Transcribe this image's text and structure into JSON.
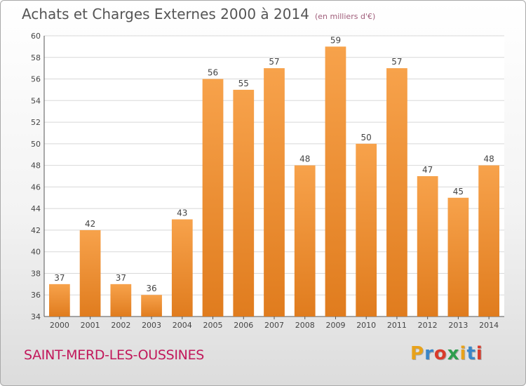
{
  "header": {
    "title": "Achats et Charges Externes 2000 à 2014",
    "subtitle": "(en milliers d'€)"
  },
  "footer": {
    "commune": "SAINT-MERD-LES-OUSSINES",
    "logo": "Proxiti"
  },
  "colors": {
    "bar_light": "#f7a24b",
    "bar_dark": "#e07c1e",
    "commune_text": "#c2185b"
  },
  "chart_data": {
    "type": "bar",
    "title": "Achats et Charges Externes 2000 à 2014",
    "subtitle": "(en milliers d'€)",
    "xlabel": "",
    "ylabel": "",
    "categories": [
      "2000",
      "2001",
      "2002",
      "2003",
      "2004",
      "2005",
      "2006",
      "2007",
      "2008",
      "2009",
      "2010",
      "2011",
      "2012",
      "2013",
      "2014"
    ],
    "values": [
      37,
      42,
      37,
      36,
      43,
      56,
      55,
      57,
      48,
      59,
      50,
      57,
      47,
      45,
      48
    ],
    "ylim": [
      34,
      60
    ],
    "yticks": [
      34,
      36,
      38,
      40,
      42,
      44,
      46,
      48,
      50,
      52,
      54,
      56,
      58,
      60
    ],
    "grid": true,
    "legend": "none"
  }
}
